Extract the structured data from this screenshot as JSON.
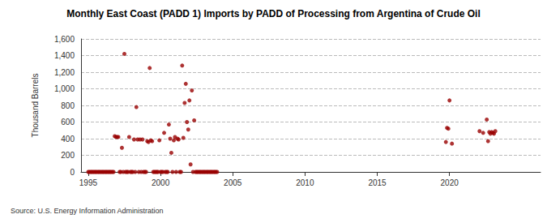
{
  "chart_data": {
    "type": "scatter",
    "title": "Monthly East Coast (PADD 1) Imports by PADD of Processing from Argentina of Crude Oil",
    "ylabel": "Thousand Barrels",
    "source": "Source: U.S. Energy Information Administration",
    "color": "#990000",
    "marker": "circle",
    "grid": true,
    "xlim": [
      1994.5,
      2026.3
    ],
    "xticks": [
      1995,
      2000,
      2005,
      2010,
      2015,
      2020
    ],
    "ylim": [
      0,
      1600
    ],
    "yticks": [
      0,
      200,
      400,
      600,
      800,
      {
        "value": 1000,
        "label": "1,000"
      },
      {
        "value": 1200,
        "label": "1,200"
      },
      {
        "value": 1400,
        "label": "1,400"
      },
      {
        "value": 1600,
        "label": "1,600"
      }
    ],
    "x": [
      1995.0,
      1995.08,
      1995.17,
      1995.25,
      1995.33,
      1995.42,
      1995.5,
      1995.58,
      1995.67,
      1995.75,
      1995.83,
      1995.92,
      1996.0,
      1996.08,
      1996.17,
      1996.25,
      1996.33,
      1996.42,
      1996.5,
      1996.58,
      1996.67,
      1996.75,
      1996.83,
      1996.92,
      1997.0,
      1997.08,
      1997.17,
      1997.25,
      1997.33,
      1997.42,
      1997.5,
      1997.58,
      1997.67,
      1997.75,
      1997.83,
      1997.92,
      1998.0,
      1998.08,
      1998.17,
      1998.25,
      1998.33,
      1998.42,
      1998.5,
      1998.58,
      1998.67,
      1998.75,
      1998.83,
      1998.92,
      1999.0,
      1999.08,
      1999.17,
      1999.25,
      1999.33,
      1999.42,
      1999.5,
      1999.58,
      1999.67,
      1999.75,
      1999.83,
      1999.92,
      2000.0,
      2000.08,
      2000.17,
      2000.25,
      2000.33,
      2000.42,
      2000.5,
      2000.58,
      2000.67,
      2000.75,
      2000.83,
      2000.92,
      2001.0,
      2001.08,
      2001.17,
      2001.25,
      2001.33,
      2001.42,
      2001.5,
      2001.58,
      2001.67,
      2001.75,
      2001.83,
      2001.92,
      2002.0,
      2002.08,
      2002.17,
      2002.25,
      2002.33,
      2002.42,
      2002.5,
      2002.58,
      2002.67,
      2002.75,
      2002.83,
      2002.92,
      2003.0,
      2003.08,
      2003.17,
      2003.25,
      2003.33,
      2003.42,
      2003.5,
      2003.58,
      2003.67,
      2003.75,
      2003.83,
      2003.92,
      2019.75,
      2019.83,
      2019.92,
      2020.0,
      2020.17,
      2022.08,
      2022.33,
      2022.58,
      2022.67,
      2022.75,
      2022.83,
      2022.92,
      2023.0,
      2023.08,
      2023.17
    ],
    "values": [
      0,
      0,
      0,
      0,
      0,
      0,
      0,
      0,
      0,
      0,
      0,
      0,
      0,
      0,
      0,
      0,
      0,
      0,
      0,
      0,
      0,
      0,
      430,
      420,
      420,
      420,
      0,
      0,
      290,
      0,
      1420,
      0,
      0,
      0,
      420,
      0,
      0,
      0,
      390,
      0,
      780,
      390,
      0,
      390,
      0,
      390,
      0,
      0,
      0,
      370,
      360,
      1250,
      380,
      370,
      0,
      0,
      0,
      0,
      0,
      380,
      0,
      0,
      0,
      470,
      0,
      0,
      0,
      570,
      400,
      230,
      0,
      380,
      420,
      0,
      400,
      390,
      0,
      0,
      1280,
      410,
      830,
      1060,
      600,
      510,
      860,
      90,
      980,
      0,
      620,
      0,
      0,
      0,
      0,
      0,
      0,
      0,
      0,
      0,
      0,
      0,
      0,
      0,
      0,
      0,
      0,
      0,
      0,
      0,
      360,
      530,
      520,
      860,
      340,
      490,
      470,
      630,
      370,
      480,
      460,
      480,
      470,
      460,
      490
    ]
  }
}
